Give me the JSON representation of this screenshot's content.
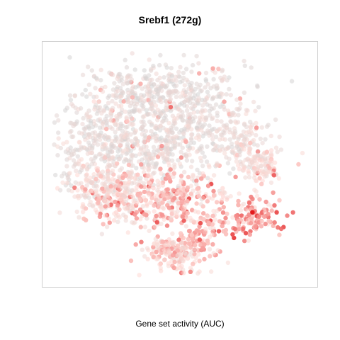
{
  "chart_data": {
    "type": "scatter",
    "title": "Srebf1 (272g)",
    "xlabel": "Gene set activity (AUC)",
    "ylabel": "",
    "grid": false,
    "axes_visible": false,
    "color_scale": {
      "low": "#d3d3d3",
      "mid": "#ffd9d4",
      "high": "#e31a1c"
    },
    "clusters": [
      {
        "x": 0.42,
        "y": 0.8,
        "sx": 0.16,
        "sy": 0.07,
        "n": 420,
        "activity": [
          0.0,
          0.25
        ]
      },
      {
        "x": 0.2,
        "y": 0.58,
        "sx": 0.1,
        "sy": 0.1,
        "n": 360,
        "activity": [
          0.0,
          0.3
        ]
      },
      {
        "x": 0.45,
        "y": 0.6,
        "sx": 0.12,
        "sy": 0.1,
        "n": 420,
        "activity": [
          0.0,
          0.3
        ]
      },
      {
        "x": 0.72,
        "y": 0.62,
        "sx": 0.06,
        "sy": 0.07,
        "n": 150,
        "activity": [
          0.05,
          0.3
        ]
      },
      {
        "x": 0.22,
        "y": 0.38,
        "sx": 0.08,
        "sy": 0.06,
        "n": 220,
        "activity": [
          0.15,
          0.45
        ]
      },
      {
        "x": 0.45,
        "y": 0.35,
        "sx": 0.13,
        "sy": 0.06,
        "n": 330,
        "activity": [
          0.2,
          0.6
        ]
      },
      {
        "x": 0.8,
        "y": 0.5,
        "sx": 0.05,
        "sy": 0.04,
        "n": 110,
        "activity": [
          0.15,
          0.45
        ]
      },
      {
        "x": 0.78,
        "y": 0.27,
        "sx": 0.05,
        "sy": 0.04,
        "n": 120,
        "activity": [
          0.3,
          0.75
        ]
      },
      {
        "x": 0.58,
        "y": 0.2,
        "sx": 0.04,
        "sy": 0.04,
        "n": 80,
        "activity": [
          0.25,
          0.6
        ]
      },
      {
        "x": 0.48,
        "y": 0.12,
        "sx": 0.06,
        "sy": 0.035,
        "n": 180,
        "activity": [
          0.2,
          0.55
        ]
      }
    ],
    "highlight_points": [
      {
        "x": 0.775,
        "y": 0.295,
        "activity": 1.0
      },
      {
        "x": 0.705,
        "y": 0.185,
        "activity": 0.85
      },
      {
        "x": 0.7,
        "y": 0.2,
        "activity": 0.8
      },
      {
        "x": 0.465,
        "y": 0.745,
        "activity": 0.7
      },
      {
        "x": 0.54,
        "y": 0.04,
        "activity": 0.6
      },
      {
        "x": 0.95,
        "y": 0.5,
        "activity": 0.4
      }
    ]
  }
}
